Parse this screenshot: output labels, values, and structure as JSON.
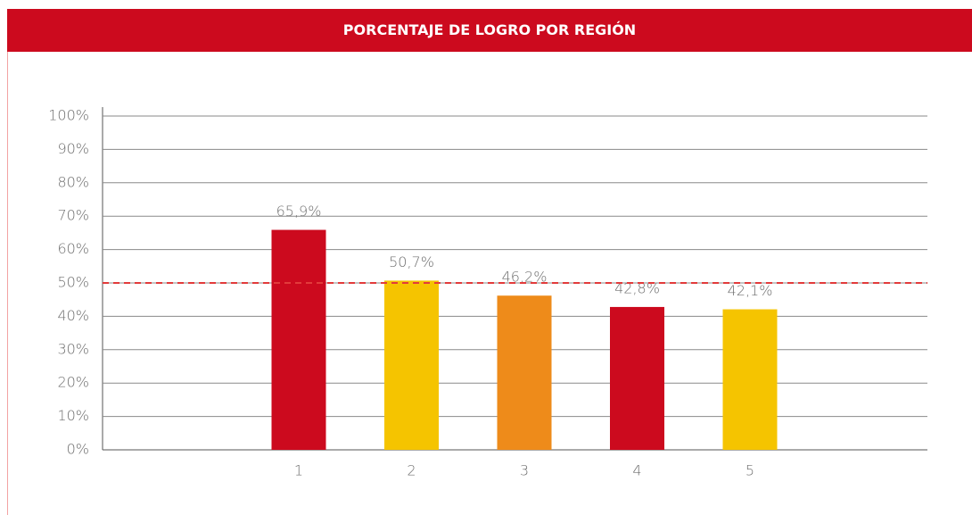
{
  "chart_data": {
    "type": "bar",
    "title": "PORCENTAJE DE LOGRO POR REGIÓN",
    "categories": [
      "1",
      "2",
      "3",
      "4",
      "5"
    ],
    "values": [
      65.9,
      50.7,
      46.2,
      42.8,
      42.1
    ],
    "value_labels": [
      "65,9%",
      "50,7%",
      "46,2%",
      "42,8%",
      "42,1%"
    ],
    "colors": [
      "#cc0a1e",
      "#f5c400",
      "#ee8b1a",
      "#cc0a1e",
      "#f5c400"
    ],
    "ylim": [
      0,
      100
    ],
    "yticks": [
      {
        "value": 0,
        "label": "0%"
      },
      {
        "value": 10,
        "label": "10%"
      },
      {
        "value": 20,
        "label": "20%"
      },
      {
        "value": 30,
        "label": "30%"
      },
      {
        "value": 40,
        "label": "40%"
      },
      {
        "value": 50,
        "label": "50%"
      },
      {
        "value": 60,
        "label": "60%"
      },
      {
        "value": 70,
        "label": "70%"
      },
      {
        "value": 80,
        "label": "80%"
      },
      {
        "value": 90,
        "label": "90%"
      },
      {
        "value": 100,
        "label": "100%"
      }
    ],
    "grid": true,
    "reference_line": {
      "value": 50,
      "color": "#e23b3b",
      "style": "dashed"
    }
  }
}
